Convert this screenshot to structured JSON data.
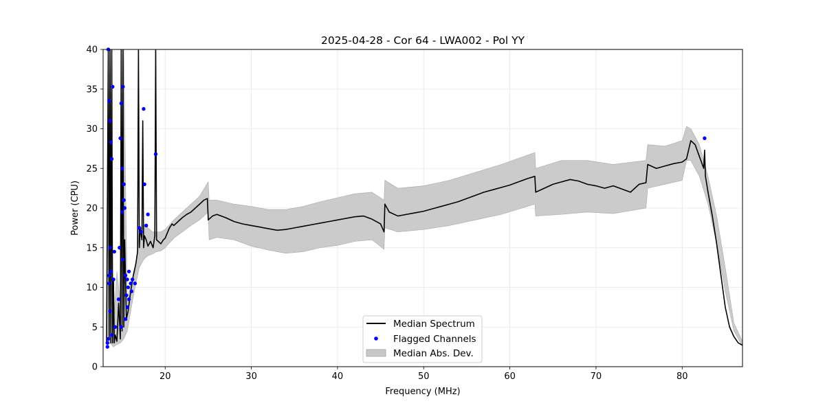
{
  "chart_data": {
    "type": "line",
    "title": "2025-04-28 - Cor 64 - LWA002 - Pol YY",
    "xlabel": "Frequency (MHz)",
    "ylabel": "Power (CPU)",
    "xlim": [
      12.8,
      87.0
    ],
    "ylim": [
      0,
      40
    ],
    "xticks": [
      20,
      30,
      40,
      50,
      60,
      70,
      80
    ],
    "yticks": [
      0,
      5,
      10,
      15,
      20,
      25,
      30,
      35,
      40
    ],
    "grid": true,
    "legend_position": "lower-center",
    "legend": [
      "Median Spectrum",
      "Flagged Channels",
      "Median Abs. Dev."
    ],
    "series": [
      {
        "name": "Median Spectrum",
        "color": "#000000",
        "x": [
          13.2,
          13.4,
          13.5,
          13.6,
          13.7,
          13.8,
          13.9,
          14.0,
          14.1,
          14.2,
          14.4,
          14.6,
          14.8,
          14.9,
          15.0,
          15.1,
          15.2,
          15.3,
          15.5,
          15.7,
          16.0,
          16.3,
          16.6,
          16.8,
          16.9,
          17.0,
          17.1,
          17.3,
          17.4,
          17.5,
          17.6,
          17.8,
          18.0,
          18.3,
          18.6,
          18.8,
          18.9,
          19.0,
          19.2,
          19.5,
          19.8,
          20.0,
          20.3,
          20.5,
          20.8,
          21.0,
          21.5,
          22.0,
          22.5,
          23.0,
          23.5,
          24.0,
          24.5,
          24.9,
          25.0,
          25.5,
          26.0,
          27.0,
          28.0,
          29.0,
          30.0,
          31.0,
          32.0,
          33.0,
          34.0,
          35.0,
          36.0,
          37.0,
          38.0,
          39.0,
          40.0,
          41.0,
          42.0,
          43.0,
          44.0,
          45.0,
          45.4,
          45.5,
          46.0,
          47.0,
          48.0,
          49.0,
          50.0,
          51.0,
          52.0,
          53.0,
          54.0,
          55.0,
          56.0,
          57.0,
          58.0,
          59.0,
          60.0,
          61.0,
          62.0,
          62.9,
          63.0,
          64.0,
          65.0,
          66.0,
          67.0,
          68.0,
          69.0,
          70.0,
          71.0,
          72.0,
          73.0,
          74.0,
          75.0,
          75.8,
          76.0,
          77.0,
          78.0,
          79.0,
          80.0,
          80.5,
          81.0,
          81.5,
          82.0,
          82.5,
          82.6,
          82.7,
          83.0,
          83.5,
          84.0,
          84.5,
          85.0,
          85.5,
          86.0,
          86.5,
          87.0
        ],
        "y": [
          3.0,
          40.0,
          3.5,
          40.0,
          3.0,
          40.0,
          3.0,
          11.0,
          3.0,
          4.0,
          3.2,
          8.0,
          3.5,
          40.0,
          4.5,
          40.0,
          5.0,
          16.0,
          6.0,
          7.0,
          9.5,
          11.5,
          13.0,
          14.5,
          40.0,
          15.0,
          17.5,
          16.0,
          31.0,
          15.0,
          16.5,
          16.0,
          15.2,
          15.8,
          15.0,
          16.5,
          40.0,
          16.0,
          15.8,
          15.5,
          16.0,
          16.2,
          17.0,
          17.5,
          18.0,
          17.8,
          18.3,
          18.8,
          19.2,
          19.5,
          20.0,
          20.5,
          21.0,
          21.2,
          18.5,
          19.0,
          19.2,
          18.8,
          18.3,
          18.0,
          17.8,
          17.6,
          17.4,
          17.2,
          17.3,
          17.5,
          17.7,
          17.9,
          18.1,
          18.3,
          18.5,
          18.7,
          18.9,
          19.0,
          18.6,
          18.0,
          17.0,
          20.5,
          19.5,
          19.0,
          19.2,
          19.4,
          19.6,
          19.9,
          20.2,
          20.5,
          20.8,
          21.2,
          21.6,
          22.0,
          22.3,
          22.6,
          22.9,
          23.3,
          23.7,
          24.0,
          22.0,
          22.5,
          23.0,
          23.3,
          23.6,
          23.4,
          23.0,
          22.8,
          22.5,
          22.8,
          22.4,
          22.0,
          23.0,
          23.2,
          25.5,
          25.0,
          25.3,
          25.6,
          25.8,
          26.2,
          28.5,
          28.0,
          26.5,
          25.0,
          27.3,
          24.0,
          22.0,
          19.0,
          15.5,
          11.5,
          7.5,
          5.0,
          3.8,
          3.0,
          2.7
        ]
      },
      {
        "name": "Median Abs. Dev.",
        "color": "#c8c8c8",
        "x": [
          13.2,
          13.6,
          14.0,
          14.4,
          14.8,
          15.2,
          15.6,
          16.0,
          16.5,
          17.0,
          17.5,
          18.0,
          18.5,
          19.0,
          19.5,
          20.0,
          21.0,
          22.0,
          23.0,
          24.0,
          25.0,
          25.1,
          26.0,
          28.0,
          30.0,
          32.0,
          34.0,
          36.0,
          38.0,
          40.0,
          42.0,
          44.0,
          45.4,
          45.5,
          47.0,
          50.0,
          53.0,
          56.0,
          59.0,
          62.9,
          63.0,
          66.0,
          69.0,
          72.0,
          75.8,
          76.0,
          78.0,
          80.0,
          80.5,
          81.0,
          82.0,
          83.0,
          84.0,
          85.0,
          86.0,
          87.0
        ],
        "upper": [
          5.0,
          40.0,
          5.5,
          12.0,
          8.0,
          40.0,
          8.0,
          10.5,
          12.0,
          17.0,
          18.0,
          17.5,
          17.0,
          17.0,
          17.0,
          17.3,
          18.5,
          19.5,
          20.5,
          21.5,
          23.3,
          21.0,
          21.0,
          20.5,
          20.2,
          19.8,
          19.8,
          20.2,
          20.8,
          21.3,
          21.8,
          22.0,
          21.0,
          23.5,
          22.5,
          22.8,
          23.5,
          24.5,
          25.5,
          27.0,
          25.0,
          26.0,
          26.0,
          25.5,
          26.0,
          28.0,
          27.8,
          28.5,
          30.3,
          30.0,
          28.0,
          24.0,
          19.0,
          12.5,
          5.5,
          3.2
        ],
        "lower": [
          2.5,
          3.0,
          2.5,
          2.8,
          3.0,
          3.5,
          4.5,
          7.0,
          10.0,
          12.5,
          13.5,
          14.0,
          14.2,
          14.5,
          14.6,
          15.0,
          16.2,
          17.0,
          17.8,
          18.5,
          19.5,
          16.0,
          16.3,
          16.0,
          15.2,
          14.7,
          14.3,
          14.5,
          15.0,
          15.3,
          15.8,
          16.0,
          14.8,
          17.5,
          17.0,
          17.3,
          17.8,
          18.5,
          19.2,
          20.5,
          19.0,
          19.2,
          19.5,
          19.3,
          20.0,
          22.5,
          23.0,
          23.5,
          26.0,
          26.0,
          24.0,
          20.5,
          15.5,
          9.5,
          4.5,
          2.6
        ]
      },
      {
        "name": "Flagged Channels",
        "color": "#0000ff",
        "x": [
          13.3,
          13.4,
          13.5,
          13.6,
          13.7,
          13.8,
          13.9,
          14.0,
          14.1,
          14.2,
          13.4,
          13.5,
          13.6,
          13.7,
          13.8,
          14.6,
          14.7,
          14.8,
          14.9,
          15.0,
          15.1,
          15.2,
          15.3,
          15.4,
          15.5,
          15.6,
          15.7,
          15.8,
          16.0,
          16.2,
          16.5,
          17.0,
          17.2,
          17.5,
          17.8,
          18.0,
          13.3,
          13.5,
          13.6,
          14.9,
          15.0,
          15.1,
          15.2,
          15.4,
          15.6,
          15.8,
          16.1,
          17.6,
          18.9,
          82.6
        ],
        "y": [
          2.5,
          40.0,
          33.5,
          31.0,
          28.3,
          26.2,
          35.3,
          11.0,
          14.5,
          5.0,
          3.5,
          10.5,
          15.0,
          12.0,
          4.0,
          8.5,
          15.0,
          28.8,
          33.2,
          25.0,
          35.3,
          23.0,
          20.0,
          11.5,
          9.0,
          7.5,
          10.0,
          12.0,
          10.5,
          11.0,
          10.5,
          17.5,
          17.0,
          32.5,
          17.8,
          19.2,
          3.0,
          11.5,
          7.0,
          5.0,
          19.5,
          13.5,
          21.0,
          6.0,
          11.0,
          8.5,
          9.5,
          23.0,
          26.8,
          28.8
        ]
      }
    ]
  }
}
